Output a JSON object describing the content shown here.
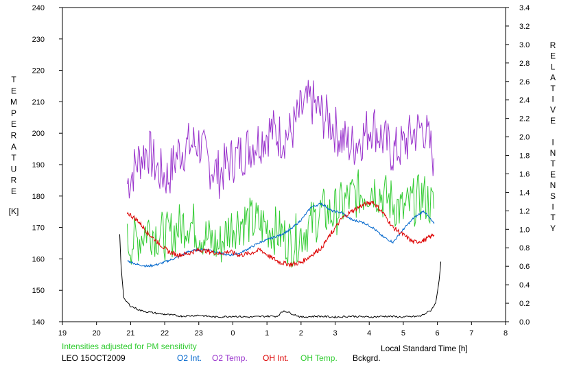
{
  "chart_data": {
    "type": "line",
    "xlabel": "Local Standard Time [h]",
    "ylabel_left": "TEMPERATURE",
    "ylabel_left_unit": "[K]",
    "ylabel_right": "RELATIVE INTENSITY",
    "x_ticks": [
      "19",
      "20",
      "21",
      "22",
      "23",
      "0",
      "1",
      "2",
      "3",
      "4",
      "5",
      "6",
      "7",
      "8"
    ],
    "xlim": [
      19,
      32
    ],
    "ylim_left": [
      140,
      240
    ],
    "ylim_right": [
      0,
      3.4
    ],
    "y_left_ticks": [
      "140",
      "150",
      "160",
      "170",
      "180",
      "190",
      "200",
      "210",
      "220",
      "230",
      "240"
    ],
    "y_right_ticks": [
      "0.0",
      "0.2",
      "0.4",
      "0.6",
      "0.8",
      "1.0",
      "1.2",
      "1.4",
      "1.6",
      "1.8",
      "2.0",
      "2.2",
      "2.4",
      "2.6",
      "2.8",
      "3.0",
      "3.2",
      "3.4"
    ],
    "grid": false,
    "legend_position": "bottom",
    "series": [
      {
        "name": "O2 Int.",
        "axis": "right",
        "color": "#0066cc",
        "x": [
          20.9,
          21.2,
          21.5,
          21.8,
          22.1,
          22.4,
          22.7,
          23.0,
          23.3,
          23.6,
          23.9,
          24.2,
          24.5,
          24.8,
          25.1,
          25.4,
          25.7,
          26.0,
          26.3,
          26.6,
          26.9,
          27.2,
          27.5,
          27.8,
          28.1,
          28.4,
          28.7,
          29.0,
          29.3,
          29.6,
          29.9
        ],
        "values": [
          0.66,
          0.62,
          0.6,
          0.62,
          0.66,
          0.7,
          0.76,
          0.78,
          0.78,
          0.74,
          0.72,
          0.74,
          0.8,
          0.86,
          0.9,
          0.94,
          1.0,
          1.1,
          1.24,
          1.28,
          1.2,
          1.18,
          1.1,
          1.08,
          1.02,
          0.92,
          0.86,
          1.0,
          1.12,
          1.2,
          1.06
        ]
      },
      {
        "name": "O2 Temp.",
        "axis": "left",
        "color": "#9933cc",
        "x": [
          20.9,
          21.2,
          21.5,
          21.8,
          22.1,
          22.4,
          22.7,
          23.0,
          23.3,
          23.6,
          23.9,
          24.2,
          24.5,
          24.8,
          25.1,
          25.4,
          25.7,
          26.0,
          26.3,
          26.6,
          26.9,
          27.2,
          27.5,
          27.8,
          28.1,
          28.4,
          28.7,
          29.0,
          29.3,
          29.6,
          29.9
        ],
        "values": [
          184,
          191,
          195,
          188,
          186,
          194,
          196,
          197,
          190,
          187,
          191,
          193,
          196,
          198,
          201,
          199,
          200,
          207,
          210,
          206,
          203,
          198,
          196,
          199,
          203,
          198,
          194,
          196,
          200,
          202,
          192
        ]
      },
      {
        "name": "OH Int.",
        "axis": "right",
        "color": "#dd0000",
        "x": [
          20.9,
          21.2,
          21.5,
          21.8,
          22.1,
          22.4,
          22.7,
          23.0,
          23.3,
          23.6,
          23.9,
          24.2,
          24.5,
          24.8,
          25.1,
          25.4,
          25.7,
          26.0,
          26.3,
          26.6,
          26.9,
          27.2,
          27.5,
          27.8,
          28.1,
          28.4,
          28.7,
          29.0,
          29.3,
          29.6,
          29.9
        ],
        "values": [
          1.18,
          1.1,
          0.96,
          0.86,
          0.76,
          0.72,
          0.74,
          0.78,
          0.76,
          0.74,
          0.76,
          0.72,
          0.74,
          0.78,
          0.7,
          0.64,
          0.62,
          0.64,
          0.72,
          0.8,
          0.96,
          1.12,
          1.2,
          1.26,
          1.3,
          1.18,
          1.02,
          0.94,
          0.86,
          0.88,
          0.94
        ]
      },
      {
        "name": "OH Temp.",
        "axis": "left",
        "color": "#33cc33",
        "x": [
          20.9,
          21.2,
          21.5,
          21.8,
          22.1,
          22.4,
          22.7,
          23.0,
          23.3,
          23.6,
          23.9,
          24.2,
          24.5,
          24.8,
          25.1,
          25.4,
          25.7,
          26.0,
          26.3,
          26.6,
          26.9,
          27.2,
          27.5,
          27.8,
          28.1,
          28.4,
          28.7,
          29.0,
          29.3,
          29.6,
          29.9
        ],
        "values": [
          165,
          166,
          170,
          168,
          167,
          170,
          172,
          169,
          166,
          164,
          170,
          172,
          172,
          171,
          170,
          168,
          165,
          168,
          171,
          175,
          174,
          177,
          180,
          181,
          183,
          180,
          178,
          175,
          178,
          180,
          176
        ]
      },
      {
        "name": "Bckgrd.",
        "axis": "right",
        "color": "#000000",
        "x": [
          20.68,
          20.72,
          20.8,
          21.0,
          21.3,
          21.6,
          22.0,
          22.5,
          23.0,
          23.5,
          24.0,
          24.5,
          25.0,
          25.3,
          25.5,
          26.0,
          26.5,
          27.0,
          27.5,
          28.0,
          28.5,
          29.0,
          29.5,
          29.8,
          29.95,
          30.05,
          30.1
        ],
        "values": [
          0.95,
          0.6,
          0.25,
          0.17,
          0.12,
          0.1,
          0.08,
          0.06,
          0.07,
          0.05,
          0.06,
          0.05,
          0.06,
          0.06,
          0.12,
          0.05,
          0.06,
          0.05,
          0.06,
          0.05,
          0.06,
          0.05,
          0.06,
          0.12,
          0.2,
          0.45,
          0.65
        ]
      }
    ],
    "annotations": {
      "note": "Intensities adjusted for PM sensitivity",
      "station_date": "LEO 15OCT2009"
    }
  },
  "colors": {
    "note": "#33cc33",
    "station": "#000000"
  }
}
